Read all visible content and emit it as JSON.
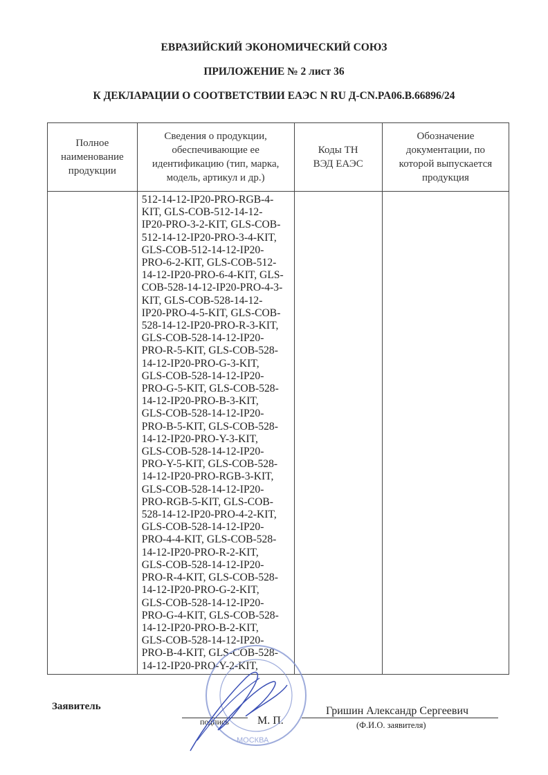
{
  "header": {
    "line1": "ЕВРАЗИЙСКИЙ ЭКОНОМИЧЕСКИЙ СОЮЗ",
    "line2": "ПРИЛОЖЕНИЕ № 2 лист 36",
    "line3": "К ДЕКЛАРАЦИИ О СООТВЕТСТВИИ ЕАЭС N RU Д-CN.PA06.B.66896/24"
  },
  "table": {
    "columns": [
      "Полное наименование продукции",
      "Сведения о продукции, обеспечивающие ее идентификацию (тип, марка, модель, артикул и др.)",
      "Коды ТН ВЭД ЕАЭС",
      "Обозначение документации, по которой выпускается продукция"
    ],
    "row": {
      "product_name": "",
      "identification_lines": [
        "512-14-12-IP20-PRO-RGB-4-",
        "KIT, GLS-COB-512-14-12-",
        "IP20-PRO-3-2-KIT, GLS-COB-",
        "512-14-12-IP20-PRO-3-4-KIT,",
        "GLS-COB-512-14-12-IP20-",
        "PRO-6-2-KIT, GLS-COB-512-",
        "14-12-IP20-PRO-6-4-KIT, GLS-",
        "COB-528-14-12-IP20-PRO-4-3-",
        "KIT, GLS-COB-528-14-12-",
        "IP20-PRO-4-5-KIT, GLS-COB-",
        "528-14-12-IP20-PRO-R-3-KIT,",
        "GLS-COB-528-14-12-IP20-",
        "PRO-R-5-KIT, GLS-COB-528-",
        "14-12-IP20-PRO-G-3-KIT,",
        "GLS-COB-528-14-12-IP20-",
        "PRO-G-5-KIT, GLS-COB-528-",
        "14-12-IP20-PRO-B-3-KIT,",
        "GLS-COB-528-14-12-IP20-",
        "PRO-B-5-KIT, GLS-COB-528-",
        "14-12-IP20-PRO-Y-3-KIT,",
        "GLS-COB-528-14-12-IP20-",
        "PRO-Y-5-KIT, GLS-COB-528-",
        "14-12-IP20-PRO-RGB-3-KIT,",
        "GLS-COB-528-14-12-IP20-",
        "PRO-RGB-5-KIT, GLS-COB-",
        "528-14-12-IP20-PRO-4-2-KIT,",
        "GLS-COB-528-14-12-IP20-",
        "PRO-4-4-KIT, GLS-COB-528-",
        "14-12-IP20-PRO-R-2-KIT,",
        "GLS-COB-528-14-12-IP20-",
        "PRO-R-4-KIT, GLS-COB-528-",
        "14-12-IP20-PRO-G-2-KIT,",
        "GLS-COB-528-14-12-IP20-",
        "PRO-G-4-KIT, GLS-COB-528-",
        "14-12-IP20-PRO-B-2-KIT,",
        "GLS-COB-528-14-12-IP20-",
        "PRO-B-4-KIT, GLS-COB-528-",
        "14-12-IP20-PRO-Y-2-KIT,"
      ],
      "hs_codes": "",
      "documentation": ""
    }
  },
  "footer": {
    "applicant_label": "Заявитель",
    "signature_caption": "подпись",
    "seal_caption": "М. П.",
    "applicant_name": "Гришин Александр Сергеевич",
    "name_caption": "(Ф.И.О. заявителя)",
    "seal_text": "МОСКВА",
    "stamp_color": "#5a6fc0",
    "signature_color": "#3a4fb5"
  }
}
